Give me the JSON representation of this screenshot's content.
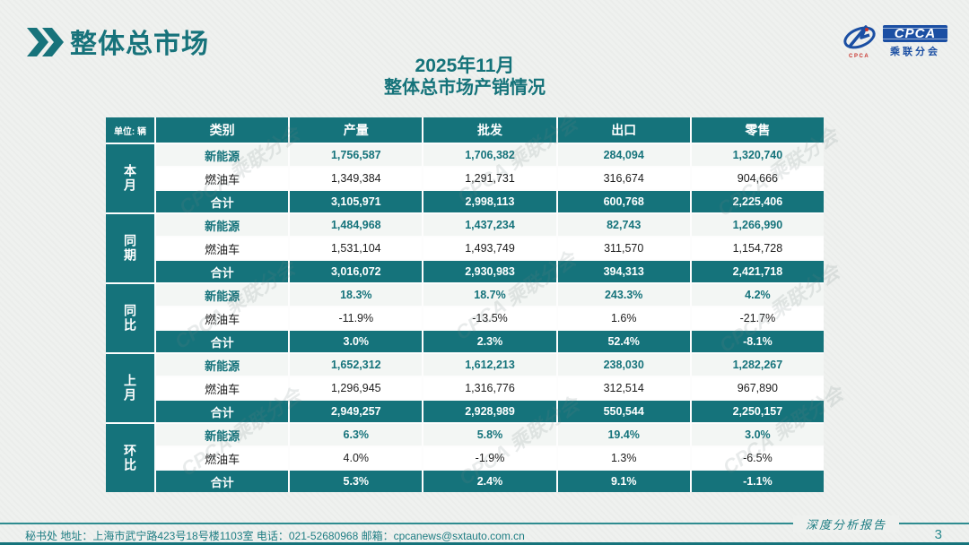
{
  "page": {
    "title": "整体总市场",
    "subtitle_line1": "2025年11月",
    "subtitle_line2": "整体总市场产销情况",
    "watermark": "CPCA 乘联分会",
    "page_number": "3",
    "footer_text": "秘书处   地址：上海市武宁路423号18号楼1103室   电话：021-52680968   邮箱：cpcanews@sxtauto.com.cn",
    "report_label": "深度分析报告"
  },
  "logo": {
    "name": "CPCA",
    "subtext": "乘联分会"
  },
  "colors": {
    "teal": "#15737b",
    "light_row": "#f3f6f4",
    "logo_blue": "#1b4fa3",
    "page_background": "#eff1ef"
  },
  "table": {
    "unit_label": "单位: 辆",
    "columns": [
      "类别",
      "产量",
      "批发",
      "出口",
      "零售"
    ],
    "groups": [
      {
        "label": "本月",
        "rows": [
          {
            "category": "新能源",
            "type": "nev",
            "values": [
              "1,756,587",
              "1,706,382",
              "284,094",
              "1,320,740"
            ]
          },
          {
            "category": "燃油车",
            "type": "ice",
            "values": [
              "1,349,384",
              "1,291,731",
              "316,674",
              "904,666"
            ]
          },
          {
            "category": "合计",
            "type": "total",
            "values": [
              "3,105,971",
              "2,998,113",
              "600,768",
              "2,225,406"
            ]
          }
        ]
      },
      {
        "label": "同期",
        "rows": [
          {
            "category": "新能源",
            "type": "nev",
            "values": [
              "1,484,968",
              "1,437,234",
              "82,743",
              "1,266,990"
            ]
          },
          {
            "category": "燃油车",
            "type": "ice",
            "values": [
              "1,531,104",
              "1,493,749",
              "311,570",
              "1,154,728"
            ]
          },
          {
            "category": "合计",
            "type": "total",
            "values": [
              "3,016,072",
              "2,930,983",
              "394,313",
              "2,421,718"
            ]
          }
        ]
      },
      {
        "label": "同比",
        "rows": [
          {
            "category": "新能源",
            "type": "nev",
            "values": [
              "18.3%",
              "18.7%",
              "243.3%",
              "4.2%"
            ]
          },
          {
            "category": "燃油车",
            "type": "ice",
            "values": [
              "-11.9%",
              "-13.5%",
              "1.6%",
              "-21.7%"
            ]
          },
          {
            "category": "合计",
            "type": "total",
            "values": [
              "3.0%",
              "2.3%",
              "52.4%",
              "-8.1%"
            ]
          }
        ]
      },
      {
        "label": "上月",
        "rows": [
          {
            "category": "新能源",
            "type": "nev",
            "values": [
              "1,652,312",
              "1,612,213",
              "238,030",
              "1,282,267"
            ]
          },
          {
            "category": "燃油车",
            "type": "ice",
            "values": [
              "1,296,945",
              "1,316,776",
              "312,514",
              "967,890"
            ]
          },
          {
            "category": "合计",
            "type": "total",
            "values": [
              "2,949,257",
              "2,928,989",
              "550,544",
              "2,250,157"
            ]
          }
        ]
      },
      {
        "label": "环比",
        "rows": [
          {
            "category": "新能源",
            "type": "nev",
            "values": [
              "6.3%",
              "5.8%",
              "19.4%",
              "3.0%"
            ]
          },
          {
            "category": "燃油车",
            "type": "ice",
            "values": [
              "4.0%",
              "-1.9%",
              "1.3%",
              "-6.5%"
            ]
          },
          {
            "category": "合计",
            "type": "total",
            "values": [
              "5.3%",
              "2.4%",
              "9.1%",
              "-1.1%"
            ]
          }
        ]
      }
    ]
  }
}
